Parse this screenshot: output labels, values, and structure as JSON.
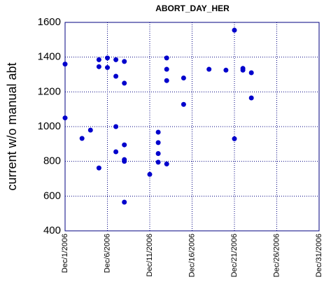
{
  "chart_data": {
    "type": "scatter",
    "title": "ABORT_DAY_HER",
    "y_label": "current w/o manual abt",
    "color": "#0000cc",
    "grid": true,
    "x": [
      "2006-12-01",
      "2006-12-01",
      "2006-12-03",
      "2006-12-04",
      "2006-12-05",
      "2006-12-05",
      "2006-12-05",
      "2006-12-06",
      "2006-12-06",
      "2006-12-07",
      "2006-12-07",
      "2006-12-07",
      "2006-12-07",
      "2006-12-08",
      "2006-12-08",
      "2006-12-08",
      "2006-12-08",
      "2006-12-08",
      "2006-12-08",
      "2006-12-11",
      "2006-12-12",
      "2006-12-12",
      "2006-12-12",
      "2006-12-12",
      "2006-12-13",
      "2006-12-13",
      "2006-12-13",
      "2006-12-13",
      "2006-12-15",
      "2006-12-15",
      "2006-12-18",
      "2006-12-20",
      "2006-12-21",
      "2006-12-21",
      "2006-12-22",
      "2006-12-22",
      "2006-12-23",
      "2006-12-23"
    ],
    "values": [
      1360,
      1050,
      932,
      980,
      1385,
      1345,
      762,
      1395,
      1340,
      1385,
      1290,
      1000,
      855,
      1375,
      1250,
      895,
      810,
      800,
      565,
      725,
      968,
      908,
      845,
      795,
      1395,
      1330,
      1265,
      785,
      1280,
      1128,
      1330,
      1325,
      1555,
      930,
      1335,
      1325,
      1310,
      1165
    ],
    "xlim": [
      "2006-12-01",
      "2006-12-31"
    ],
    "xticks": [
      {
        "value": "2006-12-01",
        "label": "Dec/1/2006"
      },
      {
        "value": "2006-12-06",
        "label": "Dec/6/2006"
      },
      {
        "value": "2006-12-11",
        "label": "Dec/11/2006"
      },
      {
        "value": "2006-12-16",
        "label": "Dec/16/2006"
      },
      {
        "value": "2006-12-21",
        "label": "Dec/21/2006"
      },
      {
        "value": "2006-12-26",
        "label": "Dec/26/2006"
      },
      {
        "value": "2006-12-31",
        "label": "Dec/31/2006"
      }
    ],
    "ylim": [
      400,
      1600
    ],
    "yticks": [
      400,
      600,
      800,
      1000,
      1200,
      1400,
      1600
    ]
  }
}
